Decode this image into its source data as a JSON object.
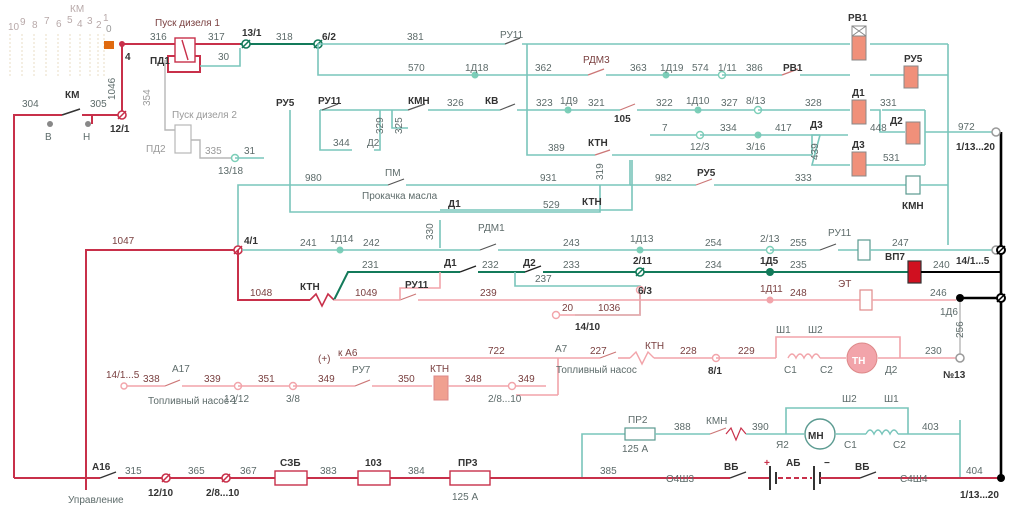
{
  "km_switch": {
    "title": "КМ",
    "positions": [
      "10",
      "9",
      "8",
      "7",
      "6",
      "5",
      "4",
      "3",
      "2",
      "1",
      "0"
    ]
  },
  "km_control": {
    "label": "КМ",
    "wire_left": "304",
    "wire_right": "305",
    "terminal_b": "В",
    "terminal_h": "Н",
    "node": "12/1"
  },
  "wires": {
    "w4": "4",
    "w1046": "1046",
    "w316": "316",
    "w317": "317",
    "w318": "318",
    "w30": "30",
    "w354": "354",
    "w335": "335",
    "w31": "31",
    "w381": "381",
    "w570": "570",
    "w362": "362",
    "w363": "363",
    "w574": "574",
    "w386": "386",
    "w326": "326",
    "w329": "329",
    "w325": "325",
    "w344": "344",
    "w323": "323",
    "w321": "321",
    "w322": "322",
    "w327": "327",
    "w328": "328",
    "w331": "331",
    "w7": "7",
    "w334": "334",
    "w417": "417",
    "w448": "448",
    "w972": "972",
    "w389": "389",
    "w319": "319",
    "w439": "439",
    "w531": "531",
    "w980": "980",
    "w931": "931",
    "w982": "982",
    "w333": "333",
    "w529": "529",
    "w330": "330",
    "w1047": "1047",
    "w241": "241",
    "w242": "242",
    "w243": "243",
    "w254": "254",
    "w255": "255",
    "w247": "247",
    "w1048": "1048",
    "w231": "231",
    "w232": "232",
    "w233": "233",
    "w234": "234",
    "w235": "235",
    "w240": "240",
    "w1049": "1049",
    "w239": "239",
    "w237": "237",
    "w248": "248",
    "w246": "246",
    "w20": "20",
    "w1036": "1036",
    "w256": "256",
    "w722": "722",
    "w227": "227",
    "w228": "228",
    "w229": "229",
    "w230": "230",
    "w338": "338",
    "w339": "339",
    "w351": "351",
    "w349a": "349",
    "w350": "350",
    "w348": "348",
    "w349b": "349",
    "w388": "388",
    "w390": "390",
    "w403": "403",
    "w315": "315",
    "w365": "365",
    "w367": "367",
    "w383": "383",
    "w384": "384",
    "w385": "385",
    "w404": "404"
  },
  "nodes": {
    "n12_1": "12/1",
    "n13_1": "13/1",
    "n6_2": "6/2",
    "n13_18": "13/18",
    "n1d18": "1Д18",
    "n1d9": "1Д9",
    "n105": "105",
    "n1d10": "1Д10",
    "n8_13": "8/13",
    "n1d19": "1Д19",
    "n1_11": "1/11",
    "n12_3": "12/3",
    "n3_16": "3/16",
    "n1_13_20a": "1/13...20",
    "n4_1": "4/1",
    "n1d14": "1Д14",
    "n1d13": "1Д13",
    "n2_13": "2/13",
    "n14_1_5a": "14/1...5",
    "n2_11": "2/11",
    "n1d5": "1Д5",
    "n6_3": "6/3",
    "n1d11": "1Д11",
    "n1d6": "1Д6",
    "n14_10": "14/10",
    "n8_1": "8/1",
    "n13": "№13",
    "n14_1_5b": "14/1...5",
    "n12_12": "12/12",
    "n3_8": "3/8",
    "n2_8_10a": "2/8...10",
    "n12_10": "12/10",
    "n2_8_10b": "2/8...10",
    "n1_13_20b": "1/13...20"
  },
  "components": {
    "pusk1": "Пуск дизеля 1",
    "pd1": "ПД1",
    "pusk2": "Пуск дизеля 2",
    "pd2": "ПД2",
    "ru11_top": "РУ11",
    "rdm3": "РДМ3",
    "rv1_coil": "РВ1",
    "rv1_contact": "РВ1",
    "ru5_coil": "РУ5",
    "ru5_contact": "РУ5",
    "ru11_b": "РУ11",
    "kmn_contact": "КМН",
    "kv": "КВ",
    "d2_contact": "Д2",
    "d1_coil": "Д1",
    "d2_coil": "Д2",
    "d3_contact": "Д3",
    "d3_coil": "Д3",
    "ktn_a": "КТН",
    "ktn_b": "КТН",
    "pm": "ПМ",
    "prokachka": "Прокачка масла",
    "ru5_c2": "РУ5",
    "kmn_coil": "КМН",
    "d1_a": "Д1",
    "rdm1": "РДМ1",
    "ru11_coil": "РУ11",
    "ktn_c": "КТН",
    "d1_b": "Д1",
    "d2_b": "Д2",
    "vp7": "ВП7",
    "ru11_c": "РУ11",
    "et": "ЭТ",
    "k_a6": "к А6",
    "plus": "(+)",
    "a7": "А7",
    "top_nasos": "Топливный насос",
    "ktn_d": "КТН",
    "sh1_a": "Ш1",
    "sh2_a": "Ш2",
    "c1_a": "С1",
    "c2_a": "С2",
    "tn": "ТН",
    "d2_tn": "Д2",
    "a17": "А17",
    "top_nasos1": "Топливный насос 1",
    "ru7": "РУ7",
    "ktn_e": "КТН",
    "pr2": "ПР2",
    "pr2_val": "125 А",
    "kmn_b": "КМН",
    "ya2": "Я2",
    "mn": "МН",
    "sh2_b": "Ш2",
    "sh1_b": "Ш1",
    "c1_b": "С1",
    "c2_b": "С2",
    "a16": "А16",
    "upravlenie": "Управление",
    "szb": "СЗБ",
    "r103": "103",
    "pr3": "ПР3",
    "pr3_val": "125 А",
    "o4sh3": "О4Ш3",
    "vb1": "ВБ",
    "ab": "АБ",
    "ab_plus": "+",
    "ab_minus": "−",
    "vb2": "ВБ",
    "s4sh4": "С4Ш4"
  },
  "colors": {
    "cyan": "#79c5bb",
    "dark_green": "#137a5a",
    "red": "#c8304a",
    "pink": "#f2a4aa",
    "coil_fill": "#f0907a",
    "vp7": "#d01020",
    "orange": "#e06a10"
  }
}
